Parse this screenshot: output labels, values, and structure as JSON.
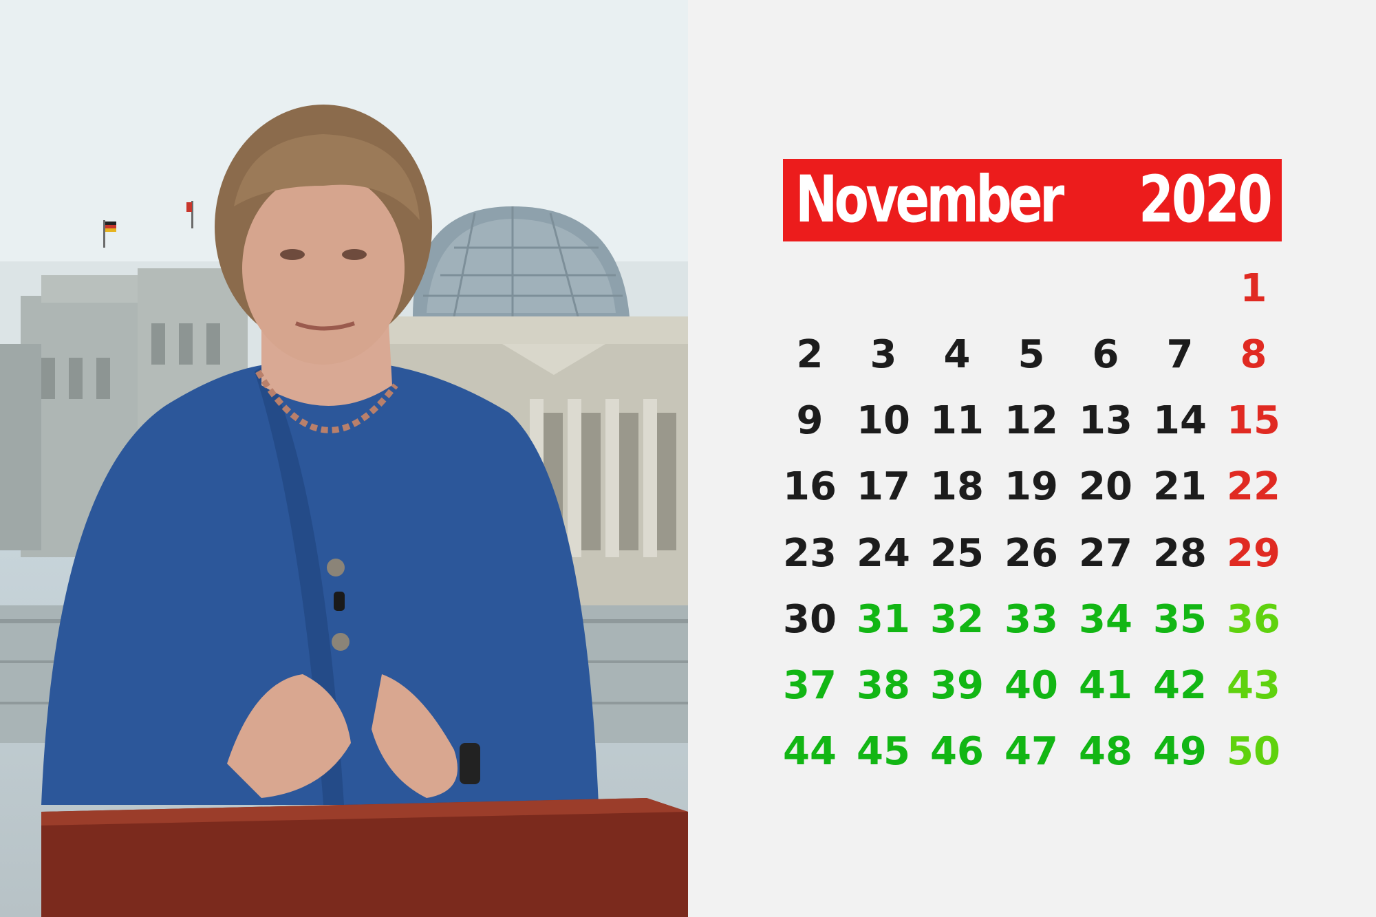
{
  "calendar": {
    "month": "November",
    "year": "2020",
    "colors": {
      "header": "#ec1c1c",
      "black": "#1c1c1c",
      "red": "#e02a22",
      "green": "#12b614",
      "lime": "#5fd20e"
    },
    "weeks": [
      [
        null,
        null,
        null,
        null,
        null,
        null,
        {
          "n": "1",
          "c": "red"
        }
      ],
      [
        {
          "n": "2",
          "c": "black"
        },
        {
          "n": "3",
          "c": "black"
        },
        {
          "n": "4",
          "c": "black"
        },
        {
          "n": "5",
          "c": "black"
        },
        {
          "n": "6",
          "c": "black"
        },
        {
          "n": "7",
          "c": "black"
        },
        {
          "n": "8",
          "c": "red"
        }
      ],
      [
        {
          "n": "9",
          "c": "black"
        },
        {
          "n": "10",
          "c": "black"
        },
        {
          "n": "11",
          "c": "black"
        },
        {
          "n": "12",
          "c": "black"
        },
        {
          "n": "13",
          "c": "black"
        },
        {
          "n": "14",
          "c": "black"
        },
        {
          "n": "15",
          "c": "red"
        }
      ],
      [
        {
          "n": "16",
          "c": "black"
        },
        {
          "n": "17",
          "c": "black"
        },
        {
          "n": "18",
          "c": "black"
        },
        {
          "n": "19",
          "c": "black"
        },
        {
          "n": "20",
          "c": "black"
        },
        {
          "n": "21",
          "c": "black"
        },
        {
          "n": "22",
          "c": "red"
        }
      ],
      [
        {
          "n": "23",
          "c": "black"
        },
        {
          "n": "24",
          "c": "black"
        },
        {
          "n": "25",
          "c": "black"
        },
        {
          "n": "26",
          "c": "black"
        },
        {
          "n": "27",
          "c": "black"
        },
        {
          "n": "28",
          "c": "black"
        },
        {
          "n": "29",
          "c": "red"
        }
      ],
      [
        {
          "n": "30",
          "c": "black"
        },
        {
          "n": "31",
          "c": "green"
        },
        {
          "n": "32",
          "c": "green"
        },
        {
          "n": "33",
          "c": "green"
        },
        {
          "n": "34",
          "c": "green"
        },
        {
          "n": "35",
          "c": "green"
        },
        {
          "n": "36",
          "c": "lime"
        }
      ],
      [
        {
          "n": "37",
          "c": "green"
        },
        {
          "n": "38",
          "c": "green"
        },
        {
          "n": "39",
          "c": "green"
        },
        {
          "n": "40",
          "c": "green"
        },
        {
          "n": "41",
          "c": "green"
        },
        {
          "n": "42",
          "c": "green"
        },
        {
          "n": "43",
          "c": "lime"
        }
      ],
      [
        {
          "n": "44",
          "c": "green"
        },
        {
          "n": "45",
          "c": "green"
        },
        {
          "n": "46",
          "c": "green"
        },
        {
          "n": "47",
          "c": "green"
        },
        {
          "n": "48",
          "c": "green"
        },
        {
          "n": "49",
          "c": "green"
        },
        {
          "n": "50",
          "c": "lime"
        }
      ]
    ]
  }
}
